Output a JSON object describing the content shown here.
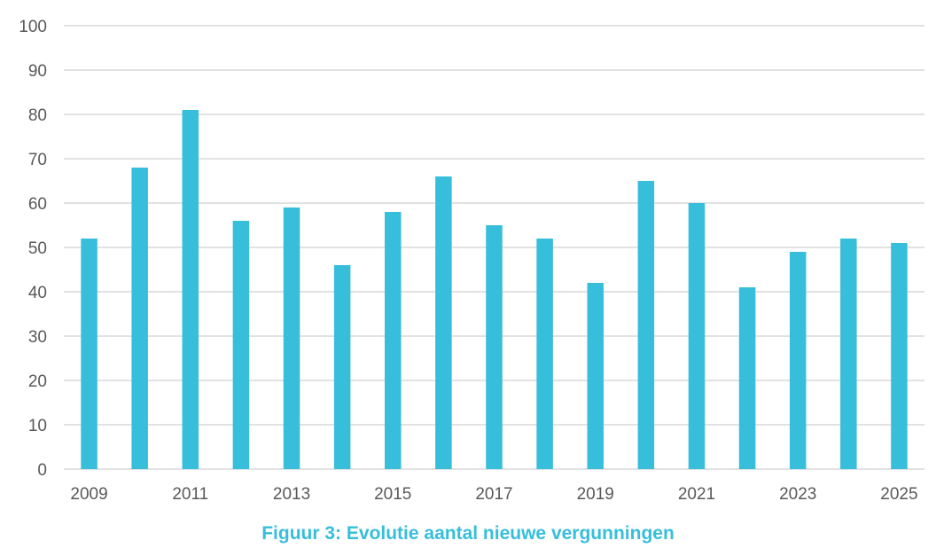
{
  "caption": "Figuur 3: Evolutie aantal nieuwe vergunningen",
  "colors": {
    "bar": "#36BEDB",
    "grid": "#D9D9D9",
    "caption": "#36BEDB",
    "tick": "#595959"
  },
  "chart_data": {
    "type": "bar",
    "categories": [
      "2009",
      "2010",
      "2011",
      "2012",
      "2013",
      "2014",
      "2015",
      "2016",
      "2017",
      "2018",
      "2019",
      "2020",
      "2021",
      "2022",
      "2023",
      "2024",
      "2025"
    ],
    "values": [
      52,
      68,
      81,
      56,
      59,
      46,
      58,
      66,
      55,
      52,
      42,
      65,
      60,
      41,
      49,
      52,
      51
    ],
    "x_tick_labels": [
      "2009",
      "2011",
      "2013",
      "2015",
      "2017",
      "2019",
      "2021",
      "2023",
      "2025"
    ],
    "y_ticks": [
      0,
      10,
      20,
      30,
      40,
      50,
      60,
      70,
      80,
      90,
      100
    ],
    "ylim": [
      0,
      100
    ],
    "grid": true,
    "legend": "none",
    "title": "",
    "xlabel": "",
    "ylabel": ""
  }
}
